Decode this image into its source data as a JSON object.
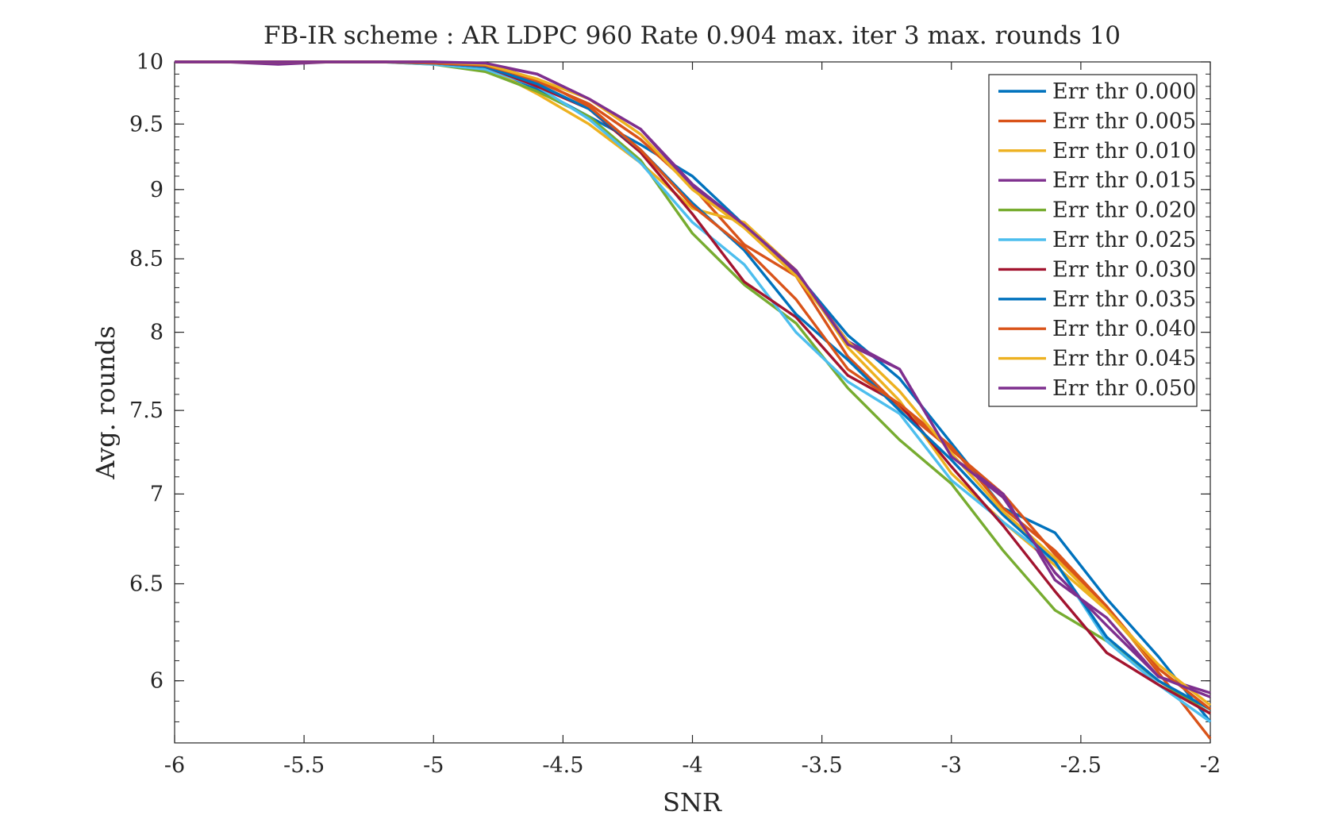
{
  "chart_data": {
    "type": "line",
    "title": "FB-IR scheme : AR LDPC 960 Rate 0.904 max. iter 3 max. rounds 10",
    "xlabel": "SNR",
    "ylabel": "Avg. rounds",
    "xlim": [
      -6,
      -2
    ],
    "ylim": [
      5.7,
      10
    ],
    "y_scale": "log",
    "grid": false,
    "legend_position": "top-right",
    "x_ticks": [
      -6,
      -5.5,
      -5,
      -4.5,
      -4,
      -3.5,
      -3,
      -2.5,
      -2
    ],
    "x_tick_labels": [
      "-6",
      "-5.5",
      "-5",
      "-4.5",
      "-4",
      "-3.5",
      "-3",
      "-2.5",
      "-2"
    ],
    "y_ticks": [
      6,
      6.5,
      7,
      7.5,
      8,
      8.5,
      9,
      9.5,
      10
    ],
    "y_tick_labels": [
      "6",
      "6.5",
      "7",
      "7.5",
      "8",
      "8.5",
      "9",
      "9.5",
      "10"
    ],
    "x": [
      -6,
      -5.8,
      -5.6,
      -5.4,
      -5.2,
      -5,
      -4.8,
      -4.6,
      -4.4,
      -4.2,
      -4,
      -3.8,
      -3.6,
      -3.4,
      -3.2,
      -3,
      -2.8,
      -2.6,
      -2.4,
      -2.2,
      -2
    ],
    "series": [
      {
        "name": "Err thr 0.000",
        "color": "#0072BD",
        "values": [
          10,
          10,
          10,
          10,
          10,
          9.99,
          9.96,
          9.78,
          9.56,
          9.34,
          9.1,
          8.74,
          8.4,
          7.98,
          7.7,
          7.3,
          6.92,
          6.78,
          6.42,
          6.12,
          5.8
        ]
      },
      {
        "name": "Err thr 0.005",
        "color": "#D95319",
        "values": [
          10,
          10,
          10,
          10,
          10,
          9.99,
          9.98,
          9.84,
          9.66,
          9.38,
          9.02,
          8.6,
          8.38,
          7.84,
          7.52,
          7.26,
          7.0,
          6.66,
          6.38,
          6.04,
          5.72
        ]
      },
      {
        "name": "Err thr 0.010",
        "color": "#EDB120",
        "values": [
          10,
          10,
          10,
          10,
          10,
          9.99,
          9.96,
          9.74,
          9.5,
          9.2,
          8.86,
          8.76,
          8.42,
          7.9,
          7.56,
          7.12,
          6.84,
          6.6,
          6.36,
          6.06,
          5.86
        ]
      },
      {
        "name": "Err thr 0.015",
        "color": "#7E2F8E",
        "values": [
          10,
          10,
          9.98,
          10,
          10,
          10,
          9.98,
          9.9,
          9.7,
          9.46,
          9.02,
          8.74,
          8.4,
          7.94,
          7.76,
          7.22,
          7.0,
          6.52,
          6.32,
          6.02,
          5.94
        ]
      },
      {
        "name": "Err thr 0.020",
        "color": "#77AC30",
        "values": [
          10,
          10,
          10,
          10,
          10,
          9.98,
          9.92,
          9.76,
          9.56,
          9.22,
          8.68,
          8.32,
          8.06,
          7.64,
          7.32,
          7.06,
          6.68,
          6.36,
          6.2,
          6.0,
          5.84
        ]
      },
      {
        "name": "Err thr 0.025",
        "color": "#4DBEEE",
        "values": [
          10,
          10,
          10,
          10,
          10,
          9.98,
          9.94,
          9.8,
          9.54,
          9.2,
          8.76,
          8.46,
          8.0,
          7.68,
          7.48,
          7.08,
          6.84,
          6.62,
          6.2,
          5.98,
          5.8
        ]
      },
      {
        "name": "Err thr 0.030",
        "color": "#A2142F",
        "values": [
          10,
          10,
          10,
          10,
          10,
          9.99,
          9.96,
          9.8,
          9.62,
          9.28,
          8.82,
          8.34,
          8.1,
          7.72,
          7.54,
          7.16,
          6.82,
          6.46,
          6.14,
          5.98,
          5.84
        ]
      },
      {
        "name": "Err thr 0.035",
        "color": "#0072BD",
        "values": [
          10,
          10,
          10,
          10,
          10,
          9.99,
          9.96,
          9.82,
          9.62,
          9.3,
          8.9,
          8.56,
          8.12,
          7.82,
          7.5,
          7.2,
          6.88,
          6.62,
          6.22,
          6.0,
          5.86
        ]
      },
      {
        "name": "Err thr 0.040",
        "color": "#D95319",
        "values": [
          10,
          10,
          10,
          10,
          10,
          9.99,
          9.97,
          9.86,
          9.64,
          9.3,
          8.88,
          8.58,
          8.22,
          7.76,
          7.54,
          7.28,
          6.92,
          6.68,
          6.38,
          6.06,
          5.86
        ]
      },
      {
        "name": "Err thr 0.045",
        "color": "#EDB120",
        "values": [
          10,
          10,
          10,
          10,
          10,
          10,
          9.98,
          9.86,
          9.7,
          9.42,
          9.0,
          8.72,
          8.38,
          7.94,
          7.62,
          7.24,
          6.9,
          6.64,
          6.36,
          6.08,
          5.88
        ]
      },
      {
        "name": "Err thr 0.050",
        "color": "#7E2F8E",
        "values": [
          10,
          10,
          10,
          10,
          10,
          10,
          9.99,
          9.9,
          9.7,
          9.46,
          9.04,
          8.74,
          8.42,
          7.92,
          7.76,
          7.22,
          6.98,
          6.56,
          6.28,
          6.02,
          5.92
        ]
      }
    ]
  }
}
